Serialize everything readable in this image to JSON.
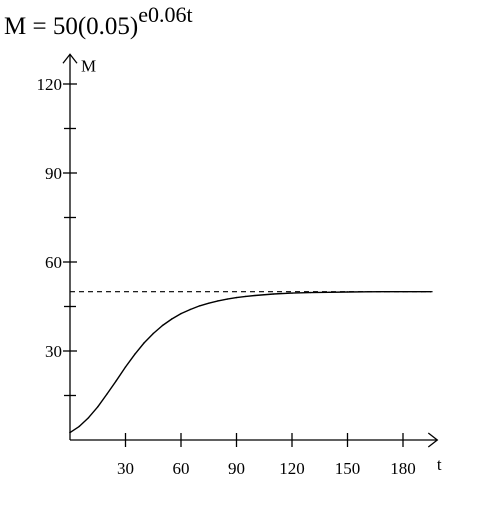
{
  "equation": {
    "base": "M = 50(0.05)",
    "e": "e",
    "exponent": "0.06t"
  },
  "chart_data": {
    "type": "line",
    "title": "M = 50(0.05)^(e^0.06t)",
    "xlabel": "t",
    "ylabel": "M",
    "xlim": [
      0,
      198
    ],
    "ylim": [
      0,
      128
    ],
    "x_ticks": [
      30,
      60,
      90,
      120,
      150,
      180
    ],
    "x_tick_labels": [
      "30",
      "60",
      "90",
      "120",
      "150",
      "180"
    ],
    "x_minor_ticks": [],
    "y_ticks": [
      30,
      60,
      90,
      120
    ],
    "y_tick_labels": [
      "30",
      "60",
      "90",
      "120"
    ],
    "y_minor_ticks": [
      15,
      45,
      75,
      105
    ],
    "asymptote": {
      "y": 50,
      "style": "dashed",
      "x_range": [
        0,
        196
      ]
    },
    "grid": false,
    "series": [
      {
        "x": [
          0,
          5,
          10,
          15,
          20,
          25,
          30,
          35,
          40,
          45,
          50,
          55,
          60,
          65,
          70,
          75,
          80,
          85,
          90,
          95,
          100,
          110,
          120,
          130,
          140,
          150,
          160,
          170,
          180,
          190,
          195
        ],
        "y": [
          2.5,
          4.6,
          7.5,
          11.2,
          15.5,
          20.0,
          24.6,
          28.9,
          32.7,
          35.9,
          38.6,
          40.8,
          42.6,
          44.0,
          45.2,
          46.1,
          46.9,
          47.5,
          48.0,
          48.4,
          48.7,
          49.2,
          49.5,
          49.7,
          49.8,
          49.9,
          49.95,
          49.98,
          49.99,
          50.0,
          50.0
        ]
      }
    ]
  }
}
